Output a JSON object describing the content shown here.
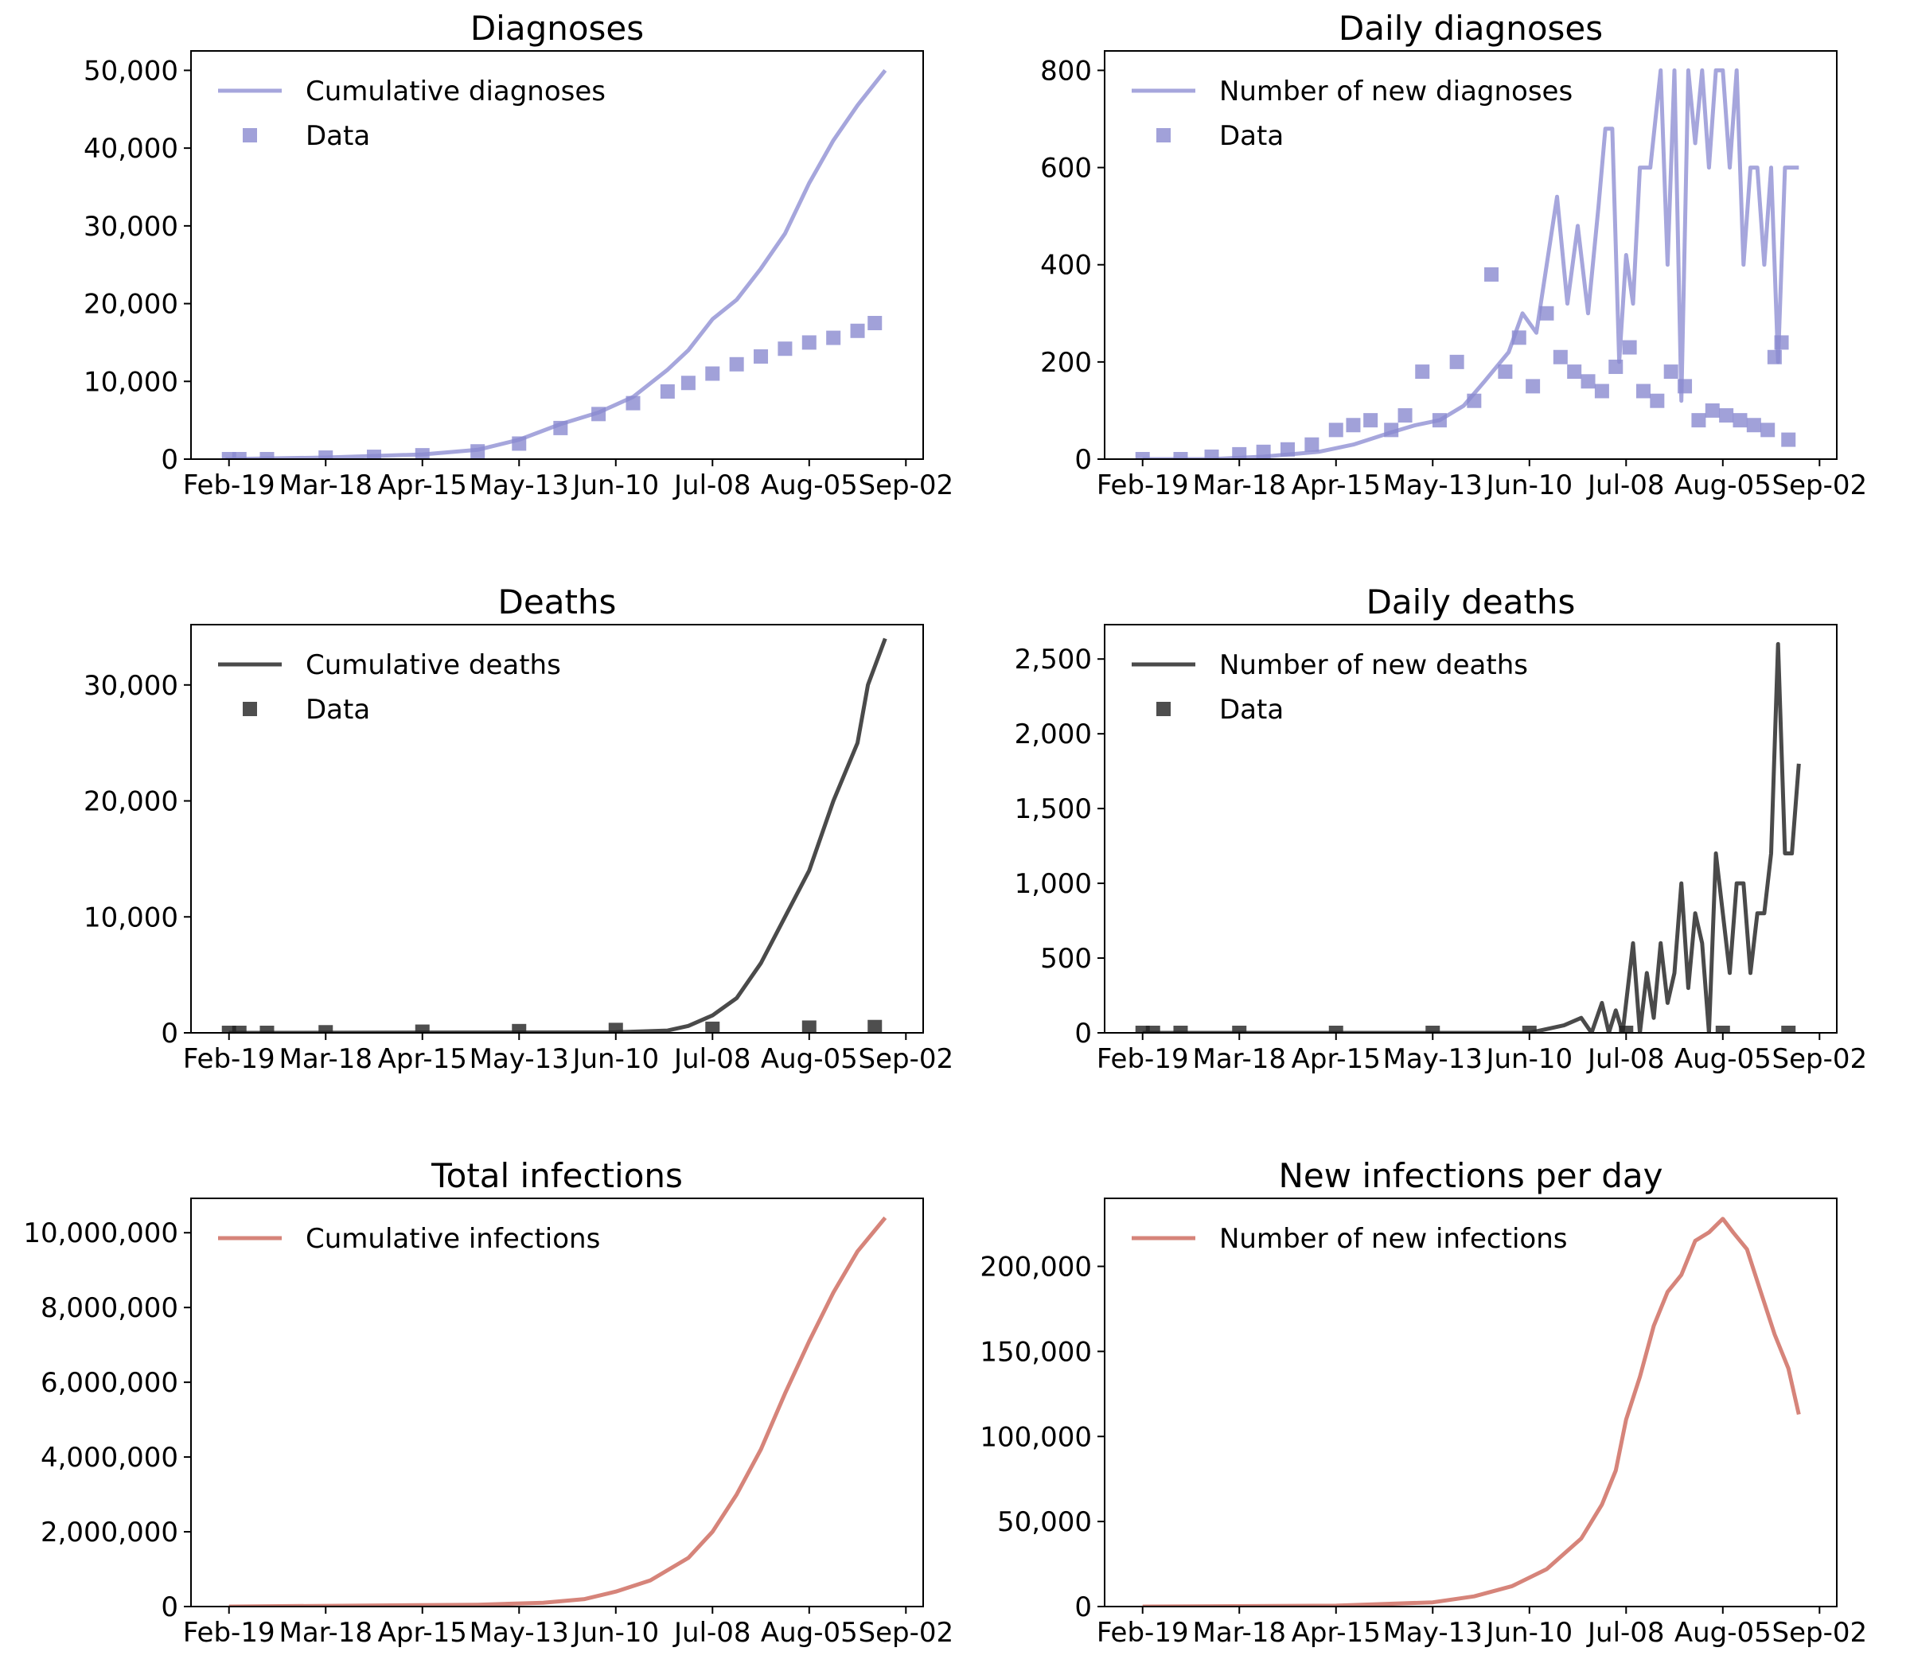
{
  "chart_data": [
    {
      "type": "line",
      "title": "Diagnoses",
      "xticks": [
        "Feb-19",
        "Mar-18",
        "Apr-15",
        "May-13",
        "Jun-10",
        "Jul-08",
        "Aug-05",
        "Sep-02"
      ],
      "xlim": [
        "2020-02-08",
        "2020-09-07"
      ],
      "yticks": [
        "0",
        "10,000",
        "20,000",
        "30,000",
        "40,000",
        "50,000"
      ],
      "ylim": [
        0,
        52500
      ],
      "legend": {
        "position": "upper-left",
        "entries": [
          "Cumulative diagnoses",
          "Data"
        ]
      },
      "series": [
        {
          "name": "Cumulative diagnoses",
          "kind": "line",
          "color": "#a6a6dc",
          "x": [
            "2020-02-18",
            "2020-03-18",
            "2020-04-15",
            "2020-05-01",
            "2020-05-13",
            "2020-05-25",
            "2020-06-05",
            "2020-06-15",
            "2020-06-25",
            "2020-07-01",
            "2020-07-08",
            "2020-07-15",
            "2020-07-22",
            "2020-07-29",
            "2020-08-05",
            "2020-08-12",
            "2020-08-19",
            "2020-08-27"
          ],
          "values": [
            0,
            200,
            600,
            1200,
            2500,
            4500,
            6000,
            8000,
            11500,
            14000,
            18000,
            20500,
            24500,
            29000,
            35500,
            41000,
            45500,
            50000
          ]
        },
        {
          "name": "Data",
          "kind": "scatter",
          "color": "#8a8ad0",
          "x": [
            "2020-02-19",
            "2020-02-22",
            "2020-03-01",
            "2020-03-18",
            "2020-04-01",
            "2020-04-15",
            "2020-05-01",
            "2020-05-13",
            "2020-05-25",
            "2020-06-05",
            "2020-06-15",
            "2020-06-25",
            "2020-07-01",
            "2020-07-08",
            "2020-07-15",
            "2020-07-22",
            "2020-07-29",
            "2020-08-05",
            "2020-08-12",
            "2020-08-19",
            "2020-08-24"
          ],
          "values": [
            0,
            0,
            0,
            200,
            300,
            500,
            1000,
            2000,
            4000,
            5800,
            7200,
            8700,
            9800,
            11000,
            12200,
            13200,
            14200,
            15000,
            15600,
            16500,
            17500
          ]
        }
      ]
    },
    {
      "type": "line",
      "title": "Daily diagnoses",
      "xticks": [
        "Feb-19",
        "Mar-18",
        "Apr-15",
        "May-13",
        "Jun-10",
        "Jul-08",
        "Aug-05",
        "Sep-02"
      ],
      "xlim": [
        "2020-02-08",
        "2020-09-07"
      ],
      "yticks": [
        "0",
        "200",
        "400",
        "600",
        "800"
      ],
      "ylim": [
        0,
        840
      ],
      "legend": {
        "position": "upper-left",
        "entries": [
          "Number of new diagnoses",
          "Data"
        ]
      },
      "series": [
        {
          "name": "Number of new diagnoses",
          "kind": "line",
          "color": "#a6a6dc",
          "x": [
            "2020-02-19",
            "2020-03-10",
            "2020-03-25",
            "2020-04-10",
            "2020-04-20",
            "2020-05-01",
            "2020-05-08",
            "2020-05-15",
            "2020-05-22",
            "2020-05-28",
            "2020-06-04",
            "2020-06-08",
            "2020-06-12",
            "2020-06-15",
            "2020-06-18",
            "2020-06-21",
            "2020-06-24",
            "2020-06-27",
            "2020-06-30",
            "2020-07-02",
            "2020-07-04",
            "2020-07-06",
            "2020-07-08",
            "2020-07-10",
            "2020-07-12",
            "2020-07-15",
            "2020-07-18",
            "2020-07-20",
            "2020-07-22",
            "2020-07-24",
            "2020-07-26",
            "2020-07-28",
            "2020-07-30",
            "2020-08-01",
            "2020-08-03",
            "2020-08-05",
            "2020-08-07",
            "2020-08-09",
            "2020-08-11",
            "2020-08-13",
            "2020-08-15",
            "2020-08-17",
            "2020-08-19",
            "2020-08-21",
            "2020-08-23",
            "2020-08-25",
            "2020-08-27"
          ],
          "values": [
            0,
            0,
            5,
            15,
            30,
            55,
            70,
            80,
            110,
            160,
            220,
            300,
            260,
            400,
            540,
            320,
            480,
            300,
            520,
            680,
            680,
            200,
            420,
            320,
            600,
            600,
            800,
            400,
            800,
            120,
            800,
            650,
            800,
            600,
            800,
            800,
            600,
            800,
            400,
            600,
            600,
            400,
            600,
            200,
            600,
            600,
            600
          ]
        },
        {
          "name": "Data",
          "kind": "scatter",
          "color": "#8a8ad0",
          "x": [
            "2020-02-19",
            "2020-03-01",
            "2020-03-10",
            "2020-03-18",
            "2020-03-25",
            "2020-04-01",
            "2020-04-08",
            "2020-04-15",
            "2020-04-20",
            "2020-04-25",
            "2020-05-01",
            "2020-05-05",
            "2020-05-10",
            "2020-05-15",
            "2020-05-20",
            "2020-05-25",
            "2020-05-30",
            "2020-06-03",
            "2020-06-07",
            "2020-06-11",
            "2020-06-15",
            "2020-06-19",
            "2020-06-23",
            "2020-06-27",
            "2020-07-01",
            "2020-07-05",
            "2020-07-09",
            "2020-07-13",
            "2020-07-17",
            "2020-07-21",
            "2020-07-25",
            "2020-07-29",
            "2020-08-02",
            "2020-08-06",
            "2020-08-10",
            "2020-08-14",
            "2020-08-18",
            "2020-08-20",
            "2020-08-22",
            "2020-08-24"
          ],
          "values": [
            0,
            0,
            5,
            10,
            15,
            20,
            30,
            60,
            70,
            80,
            60,
            90,
            180,
            80,
            200,
            120,
            380,
            180,
            250,
            150,
            300,
            210,
            180,
            160,
            140,
            190,
            230,
            140,
            120,
            180,
            150,
            80,
            100,
            90,
            80,
            70,
            60,
            210,
            240,
            40
          ]
        }
      ]
    },
    {
      "type": "line",
      "title": "Deaths",
      "xticks": [
        "Feb-19",
        "Mar-18",
        "Apr-15",
        "May-13",
        "Jun-10",
        "Jul-08",
        "Aug-05",
        "Sep-02"
      ],
      "xlim": [
        "2020-02-08",
        "2020-09-07"
      ],
      "yticks": [
        "0",
        "10,000",
        "20,000",
        "30,000"
      ],
      "ylim": [
        0,
        35200
      ],
      "legend": {
        "position": "upper-left",
        "entries": [
          "Cumulative deaths",
          "Data"
        ]
      },
      "series": [
        {
          "name": "Cumulative deaths",
          "kind": "line",
          "color": "#4a4a4a",
          "x": [
            "2020-02-19",
            "2020-06-10",
            "2020-06-25",
            "2020-07-01",
            "2020-07-08",
            "2020-07-15",
            "2020-07-22",
            "2020-07-29",
            "2020-08-05",
            "2020-08-12",
            "2020-08-19",
            "2020-08-22",
            "2020-08-27"
          ],
          "values": [
            0,
            50,
            200,
            600,
            1500,
            3000,
            6000,
            10000,
            14000,
            20000,
            25000,
            30000,
            34000
          ]
        },
        {
          "name": "Data",
          "kind": "scatter",
          "color": "#222222",
          "x": [
            "2020-02-19",
            "2020-02-22",
            "2020-03-01",
            "2020-03-18",
            "2020-04-15",
            "2020-05-13",
            "2020-06-10",
            "2020-07-08",
            "2020-08-05",
            "2020-08-24"
          ],
          "values": [
            0,
            0,
            0,
            50,
            100,
            150,
            250,
            350,
            450,
            500
          ]
        }
      ]
    },
    {
      "type": "line",
      "title": "Daily deaths",
      "xticks": [
        "Feb-19",
        "Mar-18",
        "Apr-15",
        "May-13",
        "Jun-10",
        "Jul-08",
        "Aug-05",
        "Sep-02"
      ],
      "xlim": [
        "2020-02-08",
        "2020-09-07"
      ],
      "yticks": [
        "0",
        "500",
        "1,000",
        "1,500",
        "2,000",
        "2,500"
      ],
      "ylim": [
        0,
        2730
      ],
      "legend": {
        "position": "upper-left",
        "entries": [
          "Number of new deaths",
          "Data"
        ]
      },
      "series": [
        {
          "name": "Number of new deaths",
          "kind": "line",
          "color": "#4a4a4a",
          "x": [
            "2020-02-19",
            "2020-06-10",
            "2020-06-20",
            "2020-06-25",
            "2020-06-28",
            "2020-07-01",
            "2020-07-03",
            "2020-07-05",
            "2020-07-07",
            "2020-07-10",
            "2020-07-12",
            "2020-07-14",
            "2020-07-16",
            "2020-07-18",
            "2020-07-20",
            "2020-07-22",
            "2020-07-24",
            "2020-07-26",
            "2020-07-28",
            "2020-07-30",
            "2020-08-01",
            "2020-08-03",
            "2020-08-05",
            "2020-08-07",
            "2020-08-09",
            "2020-08-11",
            "2020-08-13",
            "2020-08-15",
            "2020-08-17",
            "2020-08-19",
            "2020-08-21",
            "2020-08-23",
            "2020-08-25",
            "2020-08-27"
          ],
          "values": [
            0,
            0,
            50,
            100,
            0,
            200,
            0,
            150,
            0,
            600,
            0,
            400,
            100,
            600,
            200,
            400,
            1000,
            300,
            800,
            600,
            0,
            1200,
            800,
            400,
            1000,
            1000,
            400,
            800,
            800,
            1200,
            2600,
            1200,
            1200,
            1800
          ]
        },
        {
          "name": "Data",
          "kind": "scatter",
          "color": "#222222",
          "x": [
            "2020-02-19",
            "2020-02-22",
            "2020-03-01",
            "2020-03-18",
            "2020-04-15",
            "2020-05-13",
            "2020-06-10",
            "2020-07-08",
            "2020-08-05",
            "2020-08-24"
          ],
          "values": [
            0,
            0,
            0,
            0,
            0,
            0,
            0,
            0,
            0,
            0
          ]
        }
      ]
    },
    {
      "type": "line",
      "title": "Total infections",
      "xticks": [
        "Feb-19",
        "Mar-18",
        "Apr-15",
        "May-13",
        "Jun-10",
        "Jul-08",
        "Aug-05",
        "Sep-02"
      ],
      "xlim": [
        "2020-02-08",
        "2020-09-07"
      ],
      "yticks": [
        "0",
        "2,000,000",
        "4,000,000",
        "6,000,000",
        "8,000,000",
        "10,000,000"
      ],
      "ylim": [
        0,
        10920000
      ],
      "legend": {
        "position": "upper-left",
        "entries": [
          "Cumulative infections"
        ]
      },
      "series": [
        {
          "name": "Cumulative infections",
          "kind": "line",
          "color": "#d6847a",
          "x": [
            "2020-02-19",
            "2020-05-01",
            "2020-05-20",
            "2020-06-01",
            "2020-06-10",
            "2020-06-20",
            "2020-07-01",
            "2020-07-08",
            "2020-07-15",
            "2020-07-22",
            "2020-07-29",
            "2020-08-05",
            "2020-08-12",
            "2020-08-19",
            "2020-08-27"
          ],
          "values": [
            0,
            50000,
            100000,
            200000,
            400000,
            700000,
            1300000,
            2000000,
            3000000,
            4200000,
            5700000,
            7100000,
            8400000,
            9500000,
            10400000
          ]
        }
      ]
    },
    {
      "type": "line",
      "title": "New infections per day",
      "xticks": [
        "Feb-19",
        "Mar-18",
        "Apr-15",
        "May-13",
        "Jun-10",
        "Jul-08",
        "Aug-05",
        "Sep-02"
      ],
      "xlim": [
        "2020-02-08",
        "2020-09-07"
      ],
      "yticks": [
        "0",
        "50,000",
        "100,000",
        "150,000",
        "200,000"
      ],
      "ylim": [
        0,
        240000
      ],
      "legend": {
        "position": "upper-left",
        "entries": [
          "Number of new infections"
        ]
      },
      "series": [
        {
          "name": "Number of new infections",
          "kind": "line",
          "color": "#d6847a",
          "x": [
            "2020-02-19",
            "2020-04-15",
            "2020-05-13",
            "2020-05-25",
            "2020-06-05",
            "2020-06-15",
            "2020-06-25",
            "2020-07-01",
            "2020-07-05",
            "2020-07-08",
            "2020-07-12",
            "2020-07-16",
            "2020-07-20",
            "2020-07-24",
            "2020-07-28",
            "2020-08-01",
            "2020-08-05",
            "2020-08-08",
            "2020-08-12",
            "2020-08-16",
            "2020-08-20",
            "2020-08-24",
            "2020-08-27"
          ],
          "values": [
            0,
            500,
            2500,
            6000,
            12000,
            22000,
            40000,
            60000,
            80000,
            110000,
            135000,
            165000,
            185000,
            195000,
            215000,
            220000,
            228000,
            220000,
            210000,
            185000,
            160000,
            140000,
            113000
          ]
        }
      ]
    }
  ]
}
